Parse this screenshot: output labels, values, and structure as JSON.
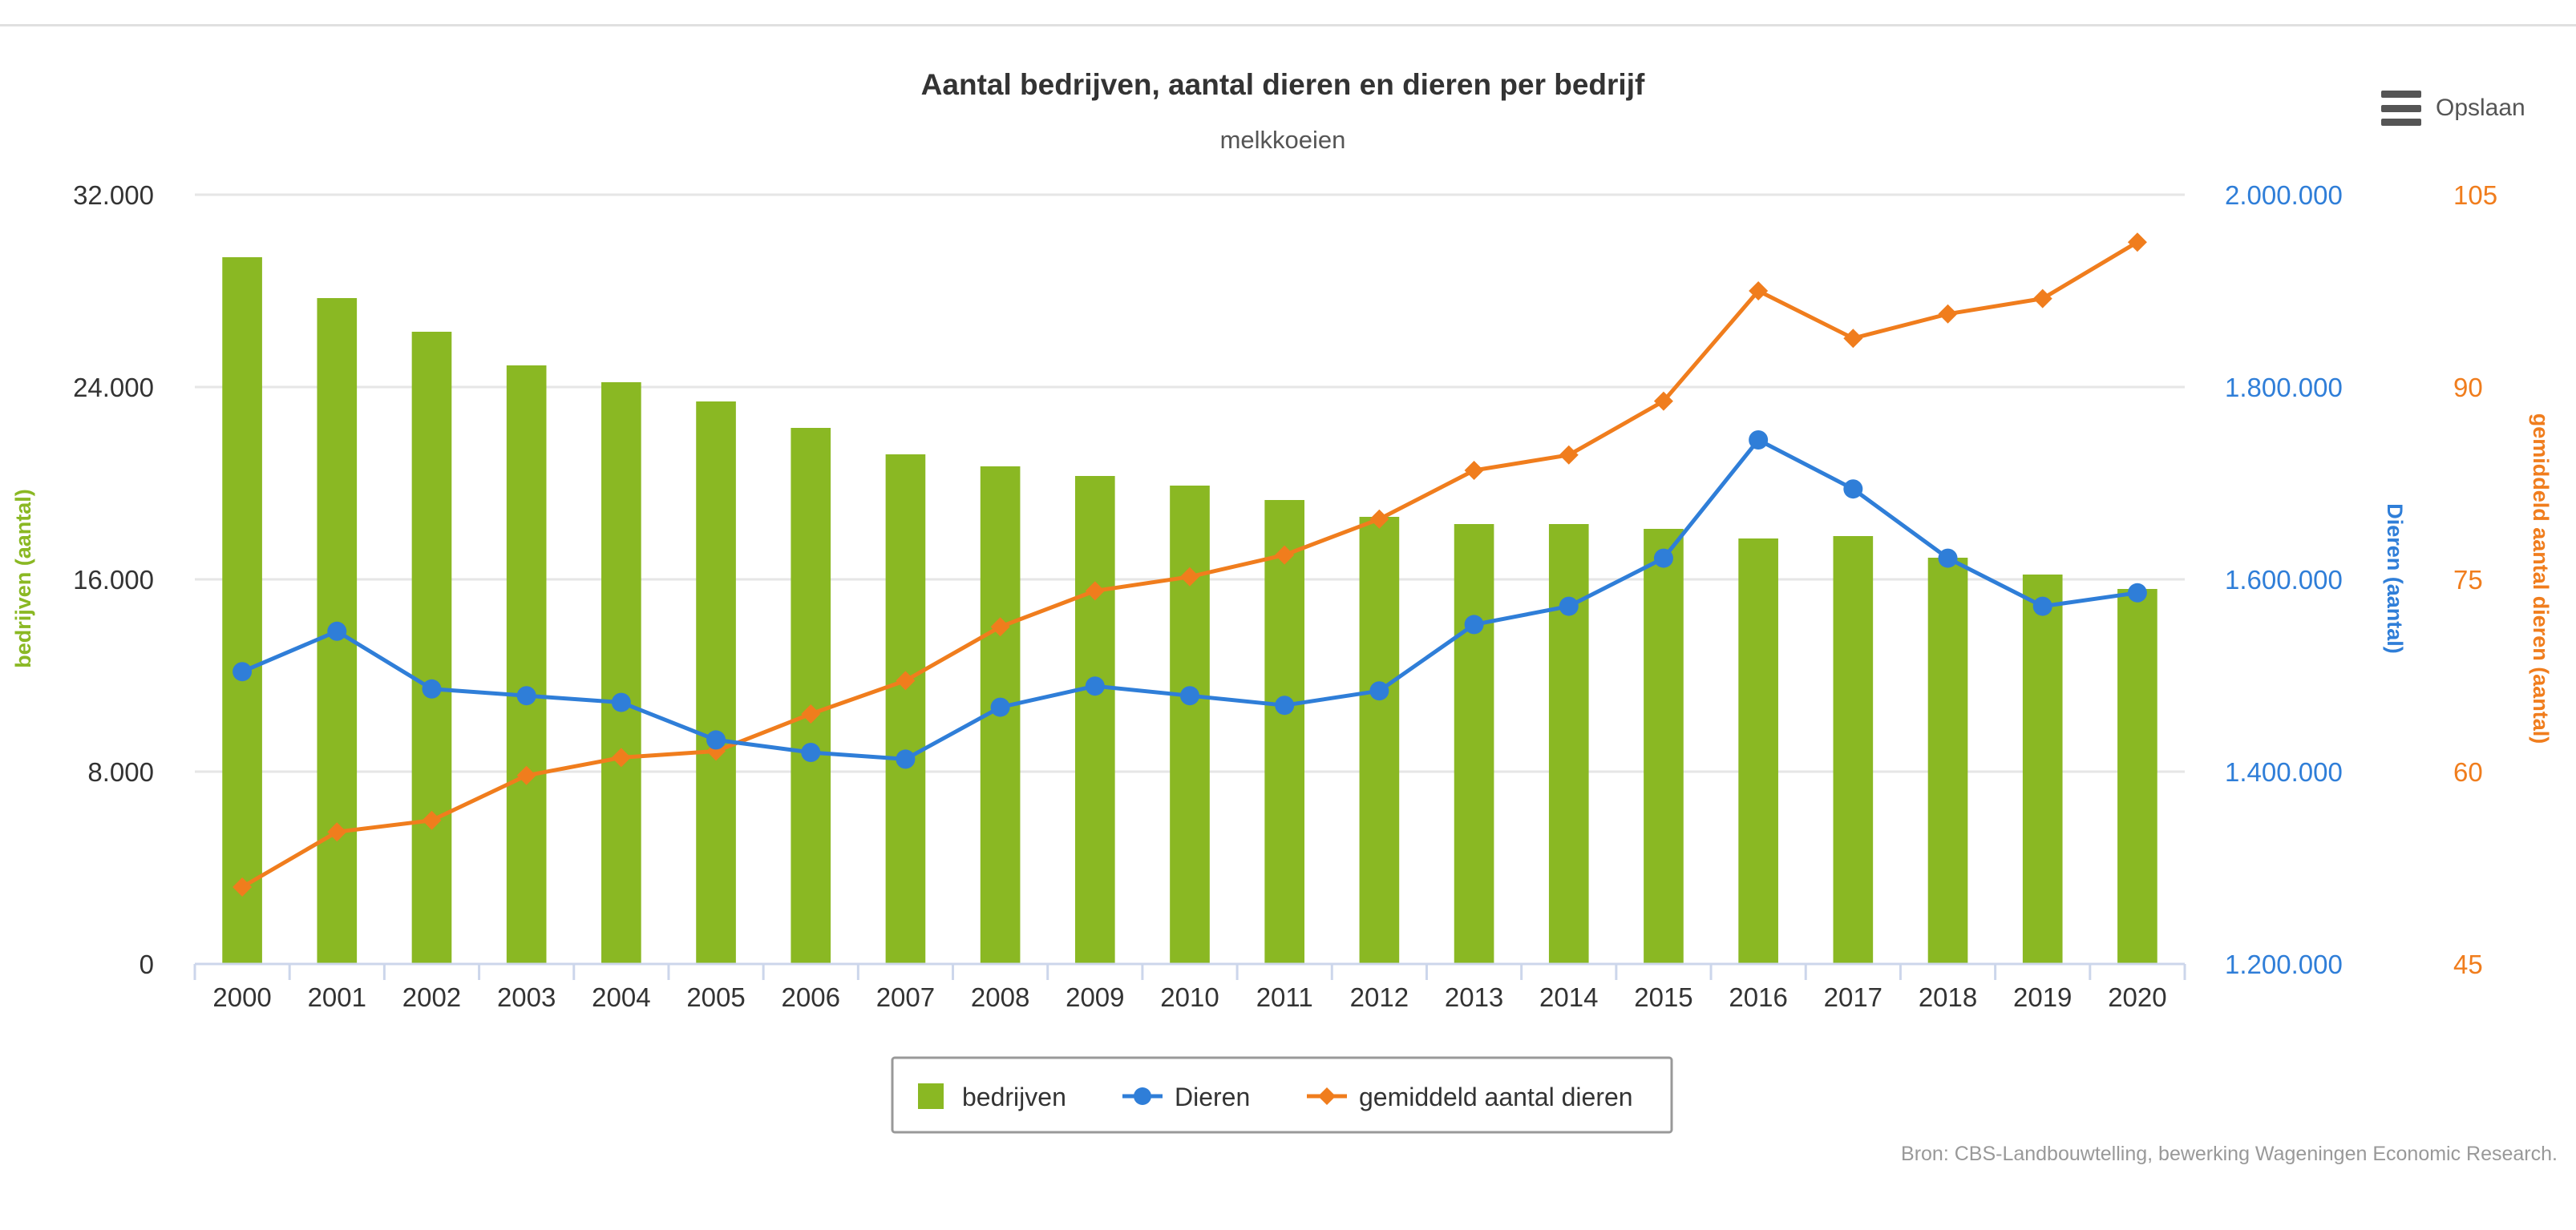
{
  "title": "Aantal bedrijven, aantal dieren en dieren per bedrijf",
  "subtitle": "melkkoeien",
  "menu_label": "Opslaan",
  "source": "Bron: CBS-Landbouwtelling, bewerking Wageningen Economic Research.",
  "colors": {
    "bedrijven": "#8ab823",
    "dieren": "#2f7ed8",
    "gemiddeld": "#f07d1d"
  },
  "chart_data": {
    "type": "bar",
    "categories": [
      "2000",
      "2001",
      "2002",
      "2003",
      "2004",
      "2005",
      "2006",
      "2007",
      "2008",
      "2009",
      "2010",
      "2011",
      "2012",
      "2013",
      "2014",
      "2015",
      "2016",
      "2017",
      "2018",
      "2019",
      "2020"
    ],
    "series": [
      {
        "name": "bedrijven",
        "type": "bar",
        "axis": "left",
        "values": [
          29400,
          27700,
          26300,
          24900,
          24200,
          23400,
          22300,
          21200,
          20700,
          20300,
          19900,
          19300,
          18600,
          18300,
          18300,
          18100,
          17700,
          17800,
          16900,
          16200,
          15600
        ]
      },
      {
        "name": "Dieren",
        "type": "line",
        "axis": "right1",
        "marker": "circle",
        "values": [
          1504000,
          1546000,
          1486000,
          1479000,
          1472000,
          1433000,
          1420000,
          1413000,
          1467000,
          1489000,
          1479000,
          1469000,
          1484000,
          1553000,
          1572000,
          1622000,
          1745000,
          1694000,
          1622000,
          1572000,
          1586000
        ]
      },
      {
        "name": "gemiddeld aantal dieren",
        "type": "line",
        "axis": "right2",
        "marker": "diamond",
        "values": [
          51,
          55.3,
          56.2,
          59.7,
          61.1,
          61.6,
          64.5,
          67.1,
          71.3,
          74.1,
          75.2,
          76.9,
          79.7,
          83.5,
          84.7,
          88.9,
          97.5,
          93.8,
          95.7,
          96.9,
          101.3
        ]
      }
    ],
    "axes": {
      "left": {
        "label": "bedrijven (aantal)",
        "min": 0,
        "max": 32000,
        "ticks": [
          0,
          8000,
          16000,
          24000,
          32000
        ],
        "tick_labels": [
          "0",
          "8.000",
          "16.000",
          "24.000",
          "32.000"
        ]
      },
      "right1": {
        "label": "Dieren (aantal)",
        "min": 1200000,
        "max": 2000000,
        "ticks": [
          1200000,
          1400000,
          1600000,
          1800000,
          2000000
        ],
        "tick_labels": [
          "1.200.000",
          "1.400.000",
          "1.600.000",
          "1.800.000",
          "2.000.000"
        ]
      },
      "right2": {
        "label": "gemiddeld aantal dieren (aantal)",
        "min": 45,
        "max": 105,
        "ticks": [
          45,
          60,
          75,
          90,
          105
        ],
        "tick_labels": [
          "45",
          "60",
          "75",
          "90",
          "105"
        ]
      }
    },
    "grid": true,
    "legend_position": "bottom-center"
  }
}
